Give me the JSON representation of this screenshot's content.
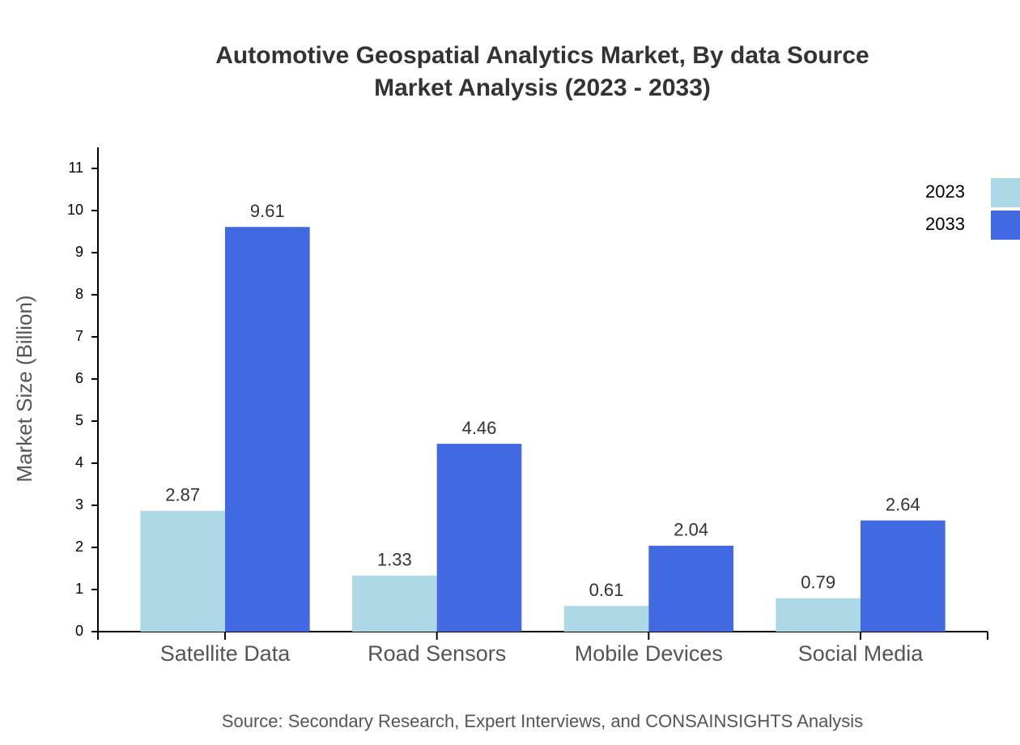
{
  "chart_data": {
    "type": "bar",
    "title": "Automotive Geospatial Analytics Market, By data Source",
    "subtitle": "Market Analysis (2023 - 2033)",
    "y_label": "Market Size (Billion)",
    "source": "Source: Secondary Research, Expert Interviews, and CONSAINSIGHTS Analysis",
    "categories": [
      "Satellite Data",
      "Road Sensors",
      "Mobile Devices",
      "Social Media"
    ],
    "series": [
      {
        "name": "2023",
        "color": "#add8e6",
        "values": [
          2.87,
          1.33,
          0.61,
          0.79
        ]
      },
      {
        "name": "2033",
        "color": "#4169e1",
        "values": [
          9.61,
          4.46,
          2.04,
          2.64
        ]
      }
    ],
    "ylim": [
      0,
      11.5
    ],
    "yticks": [
      0,
      1,
      2,
      3,
      4,
      5,
      6,
      7,
      8,
      9,
      10,
      11
    ],
    "legend": "top-right"
  }
}
